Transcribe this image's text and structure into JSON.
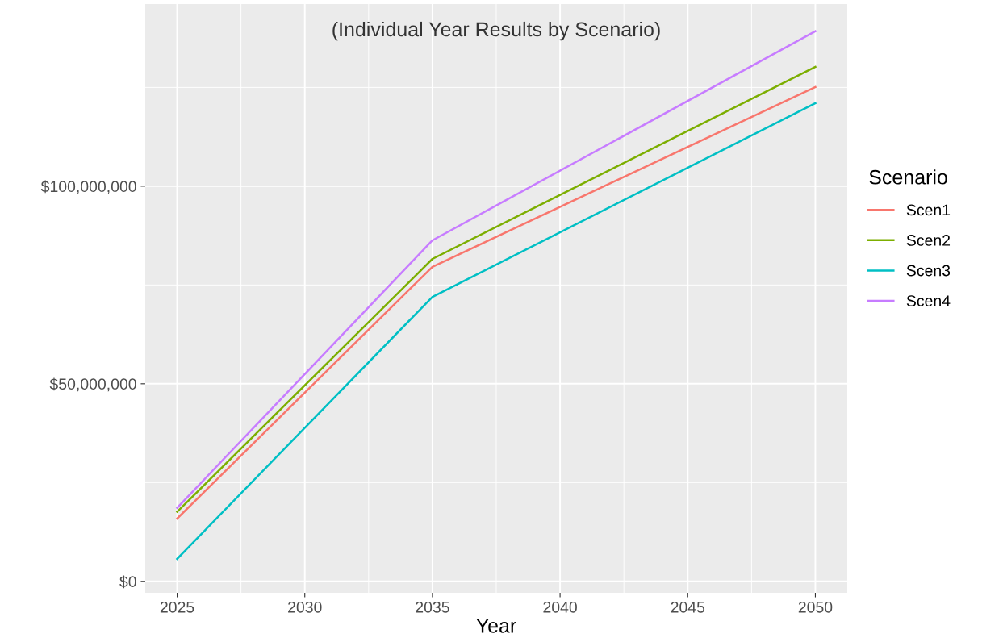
{
  "chart_data": {
    "type": "line",
    "title": "(Individual Year Results by Scenario)",
    "xlabel": "Year",
    "legend_title": "Scenario",
    "x": [
      2025,
      2035,
      2050
    ],
    "series": [
      {
        "name": "Scen1",
        "color": "#f8766d",
        "values": [
          15900000,
          79600000,
          125100000
        ]
      },
      {
        "name": "Scen2",
        "color": "#7cae00",
        "values": [
          17600000,
          81600000,
          130200000
        ]
      },
      {
        "name": "Scen3",
        "color": "#00bfc4",
        "values": [
          5700000,
          72000000,
          121000000
        ]
      },
      {
        "name": "Scen4",
        "color": "#c77cff",
        "values": [
          18600000,
          86300000,
          139200000
        ]
      }
    ],
    "xlim": [
      2023.75,
      2051.25
    ],
    "xticks": [
      2025,
      2030,
      2035,
      2040,
      2045,
      2050
    ],
    "ylim": [
      -2900000,
      146100000
    ],
    "yticks": [
      {
        "value": 0,
        "label": "$0"
      },
      {
        "value": 50000000,
        "label": "$50,000,000"
      },
      {
        "value": 100000000,
        "label": "$100,000,000"
      }
    ],
    "grid": true,
    "legend": "right",
    "line_style": "solid",
    "marker": "none"
  }
}
